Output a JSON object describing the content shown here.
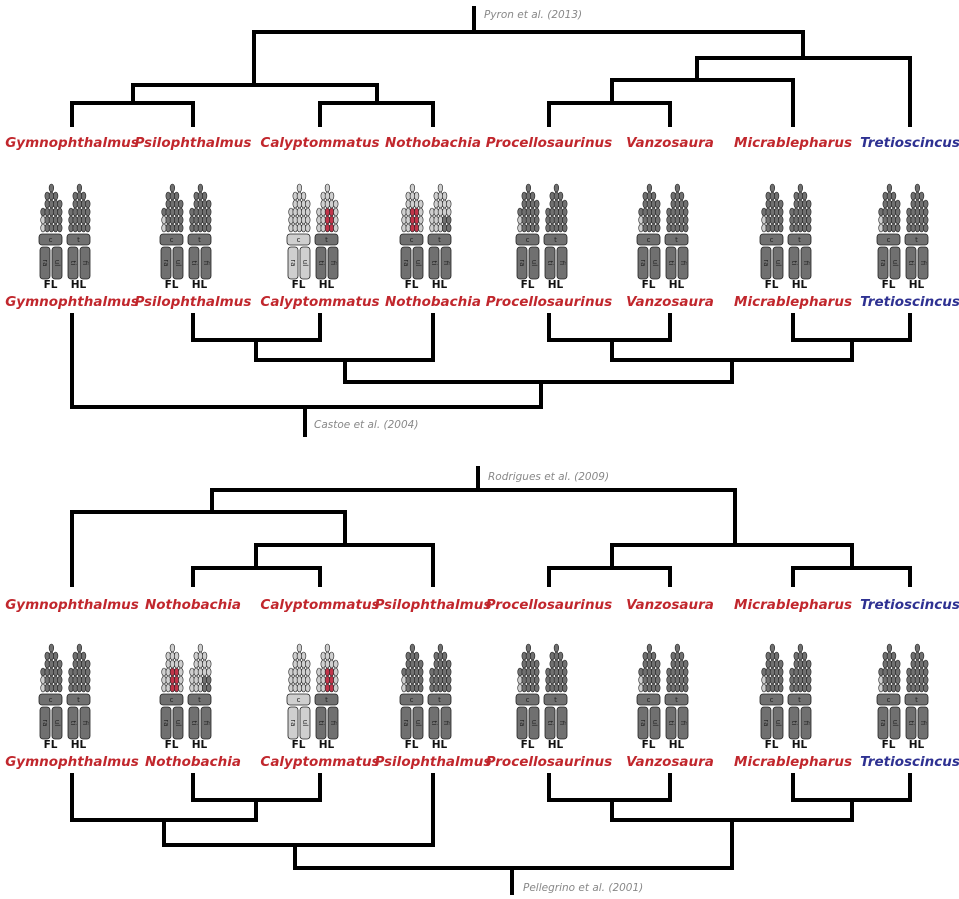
{
  "panels": [
    {
      "top_source": "Pyron et al. (2013)",
      "bottom_source": "Castoe et al. (2004)",
      "taxa": [
        {
          "name_top": "Gymnophthalmus",
          "name_bottom": "Gymnophthalmus",
          "color": "#c1272d",
          "fl": "FL",
          "hl": "HL",
          "fl_parts": [
            "c",
            "ra",
            "ul"
          ],
          "hl_parts": [
            "t",
            "ti",
            "fi"
          ]
        },
        {
          "name_top": "Psilophthalmus",
          "name_bottom": "Psilophthalmus",
          "color": "#c1272d",
          "fl": "FL",
          "hl": "HL",
          "fl_parts": [
            "c",
            "ra",
            "ul"
          ],
          "hl_parts": [
            "t",
            "ti",
            "fi"
          ]
        },
        {
          "name_top": "Calyptommatus",
          "name_bottom": "Calyptommatus",
          "color": "#c1272d",
          "fl": "FL",
          "hl": "HL",
          "fl_parts": [
            "c",
            "ra",
            "ul"
          ],
          "hl_parts": [
            "t",
            "ti",
            "fi"
          ]
        },
        {
          "name_top": "Nothobachia",
          "name_bottom": "Nothobachia",
          "color": "#c1272d",
          "fl": "FL",
          "hl": "HL",
          "fl_parts": [
            "c",
            "ra",
            "ul"
          ],
          "hl_parts": [
            "t",
            "ti",
            "fi"
          ]
        },
        {
          "name_top": "Procellosaurinus",
          "name_bottom": "Procellosaurinus",
          "color": "#c1272d",
          "fl": "FL",
          "hl": "HL",
          "fl_parts": [
            "c",
            "ra",
            "ul"
          ],
          "hl_parts": [
            "t",
            "ti",
            "fi"
          ]
        },
        {
          "name_top": "Vanzosaura",
          "name_bottom": "Vanzosaura",
          "color": "#c1272d",
          "fl": "FL",
          "hl": "HL",
          "fl_parts": [
            "c",
            "ra",
            "ul"
          ],
          "hl_parts": [
            "t",
            "ti",
            "fi"
          ]
        },
        {
          "name_top": "Micrablepharus",
          "name_bottom": "Micrablepharus",
          "color": "#c1272d",
          "fl": "FL",
          "hl": "HL",
          "fl_parts": [
            "c",
            "ra",
            "ul"
          ],
          "hl_parts": [
            "t",
            "ti",
            "fi"
          ]
        },
        {
          "name_top": "Tretioscincus",
          "name_bottom": "Tretioscincus",
          "color": "#2e3192",
          "fl": "FL",
          "hl": "HL",
          "fl_parts": [
            "c",
            "ra",
            "ul"
          ],
          "hl_parts": [
            "t",
            "ti",
            "fi"
          ]
        }
      ]
    },
    {
      "top_source": "Rodrigues et al. (2009)",
      "bottom_source": "Pellegrino et al. (2001)",
      "taxa": [
        {
          "name_top": "Gymnophthalmus",
          "name_bottom": "Gymnophthalmus",
          "color": "#c1272d",
          "fl": "FL",
          "hl": "HL",
          "fl_parts": [
            "c",
            "ra",
            "ul"
          ],
          "hl_parts": [
            "t",
            "ti",
            "fi"
          ]
        },
        {
          "name_top": "Nothobachia",
          "name_bottom": "Nothobachia",
          "color": "#c1272d",
          "fl": "FL",
          "hl": "HL",
          "fl_parts": [
            "c",
            "ra",
            "ul"
          ],
          "hl_parts": [
            "t",
            "ti",
            "fi"
          ]
        },
        {
          "name_top": "Calyptommatus",
          "name_bottom": "Calyptommatus",
          "color": "#c1272d",
          "fl": "FL",
          "hl": "HL",
          "fl_parts": [
            "c",
            "ra",
            "ul"
          ],
          "hl_parts": [
            "t",
            "ti",
            "fi"
          ]
        },
        {
          "name_top": "Psilophthalmus",
          "name_bottom": "Psilophthalmus",
          "color": "#c1272d",
          "fl": "FL",
          "hl": "HL",
          "fl_parts": [
            "c",
            "ra",
            "ul"
          ],
          "hl_parts": [
            "t",
            "ti",
            "fi"
          ]
        },
        {
          "name_top": "Procellosaurinus",
          "name_bottom": "Procellosaurinus",
          "color": "#c1272d",
          "fl": "FL",
          "hl": "HL",
          "fl_parts": [
            "c",
            "ra",
            "ul"
          ],
          "hl_parts": [
            "t",
            "ti",
            "fi"
          ]
        },
        {
          "name_top": "Vanzosaura",
          "name_bottom": "Vanzosaura",
          "color": "#c1272d",
          "fl": "FL",
          "hl": "HL",
          "fl_parts": [
            "c",
            "ra",
            "ul"
          ],
          "hl_parts": [
            "t",
            "ti",
            "fi"
          ]
        },
        {
          "name_top": "Micrablepharus",
          "name_bottom": "Micrablepharus",
          "color": "#c1272d",
          "fl": "FL",
          "hl": "HL",
          "fl_parts": [
            "c",
            "ra",
            "ul"
          ],
          "hl_parts": [
            "t",
            "ti",
            "fi"
          ]
        },
        {
          "name_top": "Tretioscincus",
          "name_bottom": "Tretioscincus",
          "color": "#2e3192",
          "fl": "FL",
          "hl": "HL",
          "fl_parts": [
            "c",
            "ra",
            "ul"
          ],
          "hl_parts": [
            "t",
            "ti",
            "fi"
          ]
        }
      ]
    }
  ]
}
